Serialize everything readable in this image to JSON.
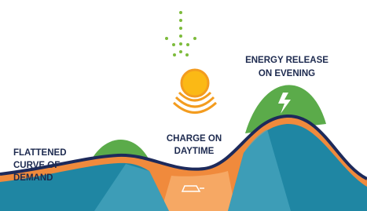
{
  "labels": {
    "evening": [
      "ENERGY RELEASE",
      "ON EVENING"
    ],
    "daytime": [
      "CHARGE ON",
      "DAYTIME"
    ],
    "demand": [
      "FLATTENED",
      "CURVE OF",
      "DEMAND"
    ]
  }
}
